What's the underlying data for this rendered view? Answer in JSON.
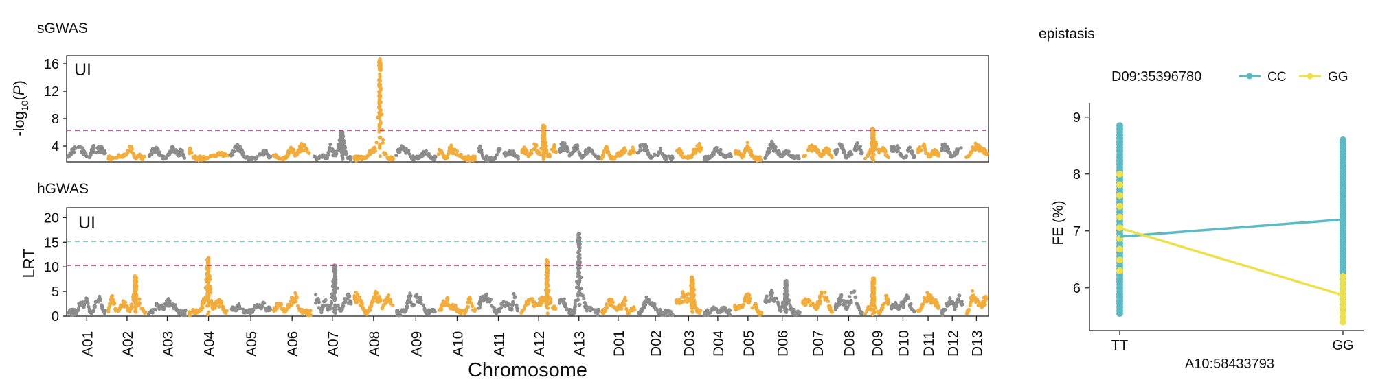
{
  "colors": {
    "gray": "#8c8c8c",
    "orange": "#f2ac3c",
    "red_line": "#b52a6e",
    "green_line": "#3aa68f",
    "CC": "#5bbac3",
    "GG": "#ece14a"
  },
  "chart_data": [
    {
      "type": "scatter",
      "subtype": "manhattan",
      "title": "sGWAS",
      "panel_label": "UI",
      "ylabel_main": "-log",
      "ylabel_sub": "10",
      "ylabel_tail": "(P)",
      "yticks": [
        "4",
        "8",
        "12",
        "16"
      ],
      "ylim": [
        1.7,
        17.2
      ],
      "threshold_lines": [
        {
          "value": 6.3,
          "color": "#b52a6e",
          "style": "dashed"
        }
      ],
      "chromosomes": [
        "A01",
        "A02",
        "A03",
        "A04",
        "A05",
        "A06",
        "A07",
        "A08",
        "A09",
        "A10",
        "A11",
        "A12",
        "A13",
        "D01",
        "D02",
        "D03",
        "D04",
        "D05",
        "D06",
        "D07",
        "D08",
        "D09",
        "D10",
        "D11",
        "D12",
        "D13"
      ],
      "chromosome_colors": "alternating gray / orange",
      "peaks": [
        {
          "chromosome": "A08",
          "value": 16.8
        },
        {
          "chromosome": "A12",
          "value": 7.0
        },
        {
          "chromosome": "A07",
          "value": 6.2
        },
        {
          "chromosome": "D09",
          "value": 6.6
        }
      ]
    },
    {
      "type": "scatter",
      "subtype": "manhattan",
      "title": "hGWAS",
      "panel_label": "UI",
      "ylabel": "LRT",
      "yticks": [
        "0",
        "5",
        "10",
        "15",
        "20"
      ],
      "ylim": [
        0,
        22
      ],
      "xlabel": "Chromosome",
      "threshold_lines": [
        {
          "value": 15.2,
          "color": "#3aa68f",
          "style": "dashed"
        },
        {
          "value": 10.3,
          "color": "#b52a6e",
          "style": "dashed"
        }
      ],
      "chromosomes": [
        "A01",
        "A02",
        "A03",
        "A04",
        "A05",
        "A06",
        "A07",
        "A08",
        "A09",
        "A10",
        "A11",
        "A12",
        "A13",
        "D01",
        "D02",
        "D03",
        "D04",
        "D05",
        "D06",
        "D07",
        "D08",
        "D09",
        "D10",
        "D11",
        "D12",
        "D13"
      ],
      "peaks": [
        {
          "chromosome": "A13",
          "value": 16.8
        },
        {
          "chromosome": "A04",
          "value": 12.0
        },
        {
          "chromosome": "A12",
          "value": 11.5
        },
        {
          "chromosome": "A07",
          "value": 10.5
        },
        {
          "chromosome": "A02",
          "value": 8.2
        },
        {
          "chromosome": "D03",
          "value": 8.0
        },
        {
          "chromosome": "D09",
          "value": 7.8
        },
        {
          "chromosome": "D06",
          "value": 7.2
        }
      ]
    },
    {
      "type": "line",
      "subtype": "interaction",
      "title": "epistasis",
      "legend_title": "D09:35396780",
      "xlabel": "A10:58433793",
      "ylabel": "FE (%)",
      "categories": [
        "TT",
        "GG"
      ],
      "yticks": [
        "6",
        "7",
        "8",
        "9"
      ],
      "ylim": [
        5.25,
        9.25
      ],
      "legend_position": "top",
      "series": [
        {
          "name": "CC",
          "color": "#5bbac3",
          "values": [
            6.9,
            7.2
          ],
          "points": [
            [
              5.55,
              8.85
            ],
            [
              5.65,
              8.6
            ]
          ]
        },
        {
          "name": "GG",
          "color": "#ece14a",
          "values": [
            7.05,
            5.87
          ],
          "points": [
            [
              6.3,
              8.0
            ],
            [
              5.4,
              6.2
            ]
          ]
        }
      ]
    }
  ]
}
